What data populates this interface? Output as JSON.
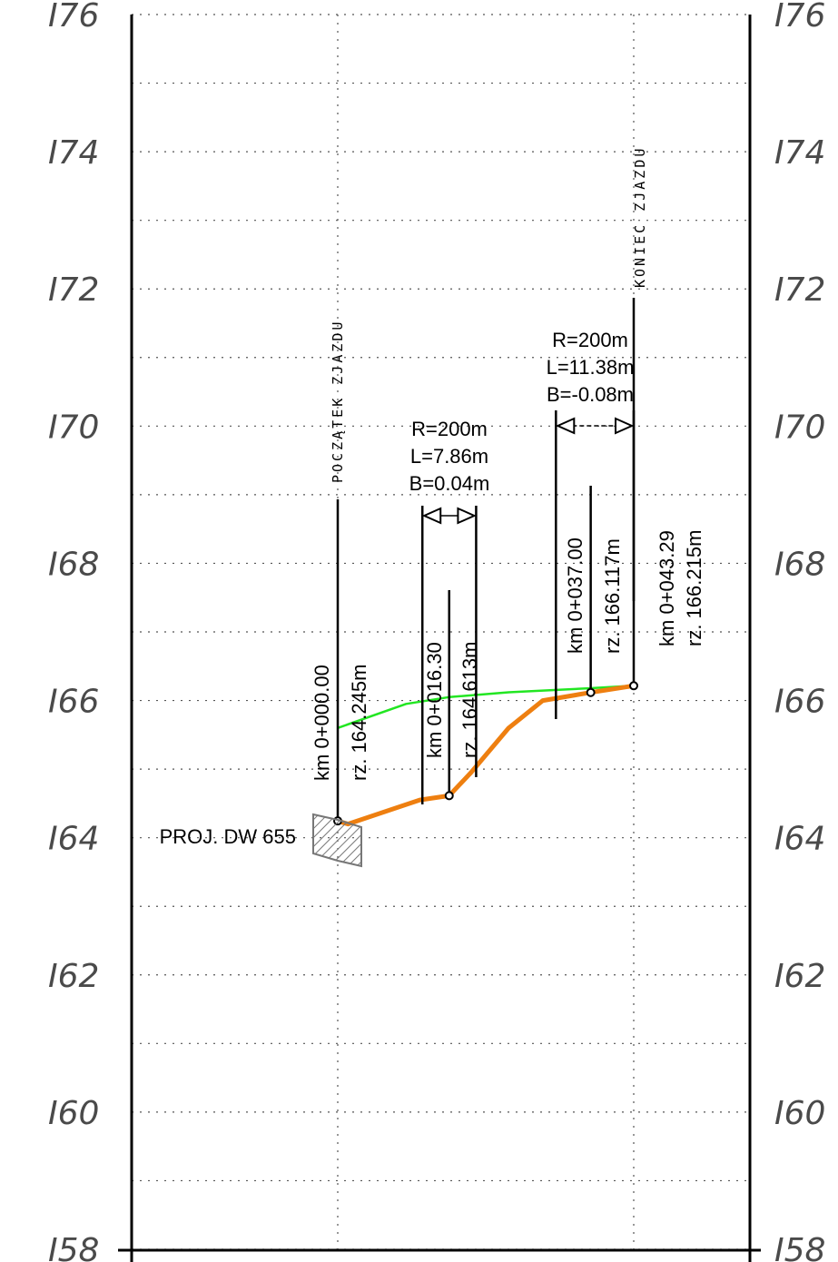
{
  "chart_data": {
    "type": "line",
    "title": "",
    "xlabel": "",
    "ylabel": "",
    "ylim": [
      158,
      176
    ],
    "y_ticks": [
      176,
      174,
      172,
      170,
      168,
      166,
      164,
      162,
      160,
      158
    ],
    "y_tick_labels": [
      "I76",
      "I74",
      "I72",
      "I70",
      "I68",
      "I66",
      "I64",
      "I62",
      "I60",
      "I58"
    ],
    "grid": true,
    "series": [
      {
        "color": "#ee7f10",
        "points": [
          [
            0.0,
            164.245
          ],
          [
            1.5,
            164.2
          ],
          [
            12.0,
            164.55
          ],
          [
            16.3,
            164.613
          ],
          [
            19.5,
            164.95
          ],
          [
            25.0,
            165.6
          ],
          [
            30.0,
            166.0
          ],
          [
            37.0,
            166.117
          ],
          [
            43.29,
            166.215
          ]
        ]
      },
      {
        "color": "#22e622",
        "points": [
          [
            0.0,
            165.6
          ],
          [
            10.0,
            165.95
          ],
          [
            16.3,
            166.05
          ],
          [
            25.0,
            166.12
          ],
          [
            37.0,
            166.18
          ],
          [
            43.29,
            166.215
          ]
        ]
      }
    ],
    "stations": [
      {
        "km": "km 0+000.00",
        "rz": "rz. 164.245m",
        "x": 0.0,
        "y": 164.245
      },
      {
        "km": "km 0+016.30",
        "rz": "rz. 164.613m",
        "x": 16.3,
        "y": 164.613
      },
      {
        "km": "km 0+037.00",
        "rz": "rz. 166.117m",
        "x": 37.0,
        "y": 166.117
      },
      {
        "km": "km 0+043.29",
        "rz": "rz. 166.215m",
        "x": 43.29,
        "y": 166.215
      }
    ],
    "curves": [
      {
        "R": "R=200m",
        "L": "L=7.86m",
        "B": "B=0.04m",
        "x_start": 12.38,
        "x_end": 20.24
      },
      {
        "R": "R=200m",
        "L": "L=11.38m",
        "B": "B=-0.08m",
        "x_start": 31.91,
        "x_end": 43.29
      }
    ],
    "annotations": {
      "start": "POCZĄTEK  ZJAZDU",
      "end": "KONIEC  ZJAZDU",
      "road": "PROJ. DW 655"
    }
  }
}
